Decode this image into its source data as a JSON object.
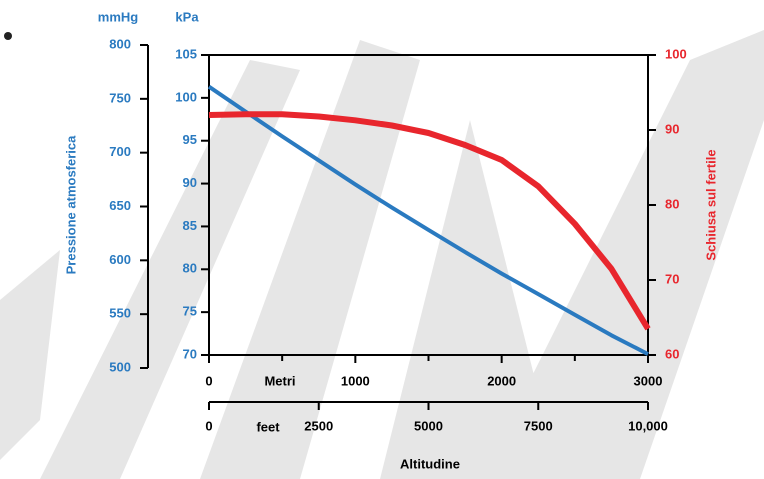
{
  "chart_data": {
    "type": "line",
    "x_title": "Altitudine",
    "x_unit": "Metri",
    "x2_unit": "feet",
    "xlim": [
      0,
      3000
    ],
    "xticks": [
      0,
      1000,
      2000,
      3000
    ],
    "xminorticks": [
      500,
      1500,
      2500
    ],
    "x2lim": [
      0,
      10000
    ],
    "x2ticks": [
      0,
      2500,
      5000,
      7500,
      {
        "value": 10000,
        "label": "10,000"
      }
    ],
    "y_title": "Pressione atmosferica",
    "y_unit": "kPa",
    "ylim": [
      70,
      105
    ],
    "yticks": [
      70,
      75,
      80,
      85,
      90,
      95,
      100,
      105
    ],
    "y3_unit": "mmHg",
    "y3lim": [
      500,
      800
    ],
    "y3ticks": [
      500,
      550,
      600,
      650,
      700,
      750,
      800
    ],
    "y2_title": "Schiusa sul fertile",
    "y2lim": [
      60,
      100
    ],
    "y2ticks": [
      60,
      70,
      80,
      90,
      100
    ],
    "x": [
      0,
      250,
      500,
      750,
      1000,
      1250,
      1500,
      1750,
      2000,
      2250,
      2500,
      2750,
      3000
    ],
    "series": [
      {
        "name": "Pressione atmosferica",
        "color": "#2a7ac0",
        "axis": "y",
        "values": [
          101.3,
          98.4,
          95.5,
          92.7,
          89.9,
          87.2,
          84.6,
          82.0,
          79.5,
          77.1,
          74.7,
          72.3,
          70.1
        ]
      },
      {
        "name": "Schiusa sul fertile",
        "color": "#e8262d",
        "axis": "y2",
        "values": [
          92,
          92.1,
          92.1,
          91.8,
          91.3,
          90.6,
          89.6,
          88,
          86,
          82.5,
          77.5,
          71.5,
          63.5
        ]
      }
    ]
  }
}
